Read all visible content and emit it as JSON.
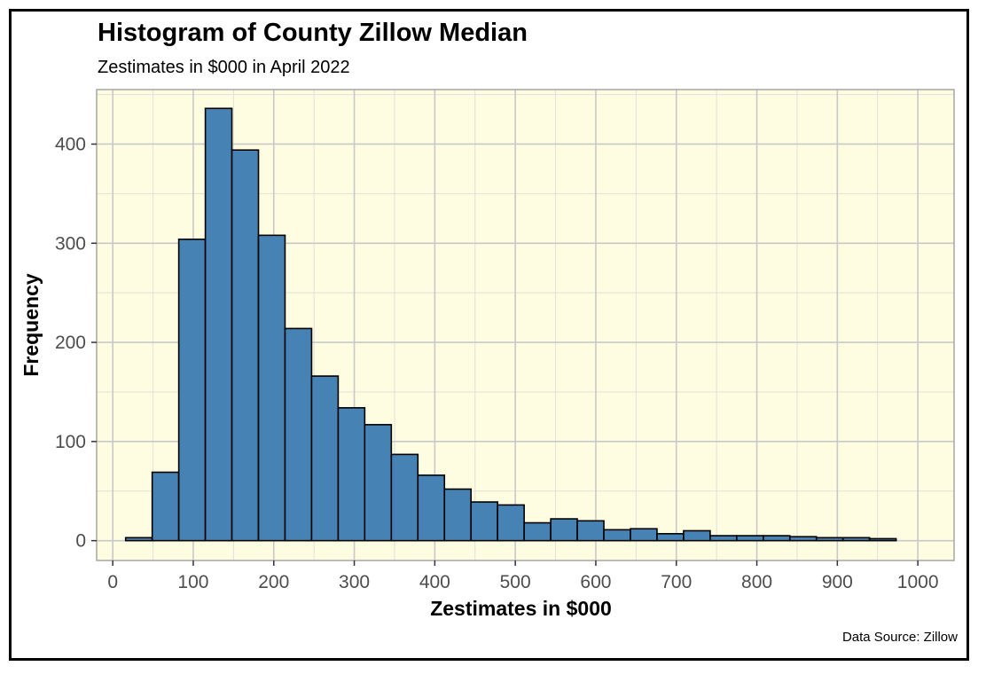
{
  "chart_data": {
    "type": "bar",
    "title": "Histogram of County Zillow Median",
    "subtitle": "Zestimates in $000 in April 2022",
    "xlabel": "Zestimates in $000",
    "ylabel": "Frequency",
    "caption": "Data Source: Zillow",
    "bin_width": 33,
    "bin_starts": [
      16,
      49,
      82,
      115,
      148,
      181,
      214,
      247,
      280,
      313,
      346,
      379,
      412,
      445,
      478,
      511,
      544,
      577,
      610,
      643,
      676,
      709,
      742,
      775,
      808,
      841,
      874,
      907,
      940
    ],
    "values": [
      3,
      69,
      304,
      436,
      394,
      308,
      214,
      166,
      134,
      117,
      87,
      66,
      52,
      39,
      36,
      18,
      22,
      20,
      11,
      12,
      7,
      10,
      5,
      5,
      5,
      4,
      3,
      3,
      2
    ],
    "xlim": [
      -20,
      1045
    ],
    "ylim": [
      -20,
      455
    ],
    "x_ticks": [
      0,
      100,
      200,
      300,
      400,
      500,
      600,
      700,
      800,
      900,
      1000
    ],
    "y_ticks": [
      0,
      100,
      200,
      300,
      400
    ],
    "colors": {
      "panel_background": "#fffde1",
      "grid_major": "#c8c8c8",
      "grid_minor": "#e0e0d8",
      "bar_fill": "#4682b4",
      "bar_outline": "#000000",
      "border": "#a6a6a6"
    }
  }
}
